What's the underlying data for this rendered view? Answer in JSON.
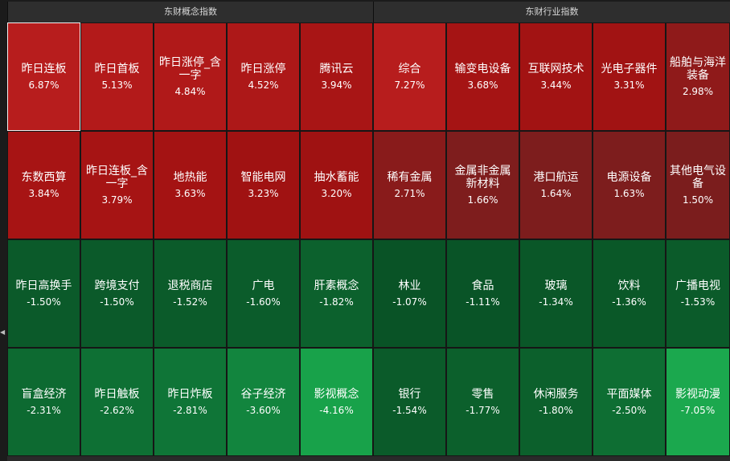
{
  "concept_panel": {
    "title": "东财概念指数",
    "tiles": [
      {
        "name": "昨日连板",
        "pct": "6.87%",
        "color": "#b71d1d",
        "selected": true
      },
      {
        "name": "昨日首板",
        "pct": "5.13%",
        "color": "#b31a1a"
      },
      {
        "name": "昨日涨停_含\n一字",
        "pct": "4.84%",
        "color": "#b01919"
      },
      {
        "name": "昨日涨停",
        "pct": "4.52%",
        "color": "#ad1818"
      },
      {
        "name": "腾讯云",
        "pct": "3.94%",
        "color": "#a81515"
      },
      {
        "name": "东数西算",
        "pct": "3.84%",
        "color": "#a71414"
      },
      {
        "name": "昨日连板_含\n一字",
        "pct": "3.79%",
        "color": "#a61414"
      },
      {
        "name": "地热能",
        "pct": "3.63%",
        "color": "#a41313"
      },
      {
        "name": "智能电网",
        "pct": "3.23%",
        "color": "#a01212"
      },
      {
        "name": "抽水蓄能",
        "pct": "3.20%",
        "color": "#9f1212"
      },
      {
        "name": "昨日高换手",
        "pct": "-1.50%",
        "color": "#0b5a2a"
      },
      {
        "name": "跨境支付",
        "pct": "-1.50%",
        "color": "#0b5a2a"
      },
      {
        "name": "退税商店",
        "pct": "-1.52%",
        "color": "#0b5b2a"
      },
      {
        "name": "广电",
        "pct": "-1.60%",
        "color": "#0b5c2b"
      },
      {
        "name": "肝素概念",
        "pct": "-1.82%",
        "color": "#0c612d"
      },
      {
        "name": "盲盒经济",
        "pct": "-2.31%",
        "color": "#0d6a31"
      },
      {
        "name": "昨日触板",
        "pct": "-2.62%",
        "color": "#0e7034"
      },
      {
        "name": "昨日炸板",
        "pct": "-2.81%",
        "color": "#0f7537"
      },
      {
        "name": "谷子经济",
        "pct": "-3.60%",
        "color": "#12853e"
      },
      {
        "name": "影视概念",
        "pct": "-4.16%",
        "color": "#18a24a"
      }
    ]
  },
  "industry_panel": {
    "title": "东财行业指数",
    "tiles": [
      {
        "name": "综合",
        "pct": "7.27%",
        "color": "#b71d1d"
      },
      {
        "name": "输变电设备",
        "pct": "3.68%",
        "color": "#a51414"
      },
      {
        "name": "互联网技术",
        "pct": "3.44%",
        "color": "#a21313"
      },
      {
        "name": "光电子器件",
        "pct": "3.31%",
        "color": "#a11313"
      },
      {
        "name": "船舶与海洋\n装备",
        "pct": "2.98%",
        "color": "#8f1a1a"
      },
      {
        "name": "稀有金属",
        "pct": "2.71%",
        "color": "#891b1b"
      },
      {
        "name": "金属非金属\n新材料",
        "pct": "1.66%",
        "color": "#7e1d1d"
      },
      {
        "name": "港口航运",
        "pct": "1.64%",
        "color": "#7d1d1d"
      },
      {
        "name": "电源设备",
        "pct": "1.63%",
        "color": "#7d1d1d"
      },
      {
        "name": "其他电气设\n备",
        "pct": "1.50%",
        "color": "#7b1d1d"
      },
      {
        "name": "林业",
        "pct": "-1.07%",
        "color": "#095326"
      },
      {
        "name": "食品",
        "pct": "-1.11%",
        "color": "#095427"
      },
      {
        "name": "玻璃",
        "pct": "-1.34%",
        "color": "#0a5728"
      },
      {
        "name": "饮料",
        "pct": "-1.36%",
        "color": "#0a5828"
      },
      {
        "name": "广播电视",
        "pct": "-1.53%",
        "color": "#0b5b2a"
      },
      {
        "name": "银行",
        "pct": "-1.54%",
        "color": "#0b5b2a"
      },
      {
        "name": "零售",
        "pct": "-1.77%",
        "color": "#0c602c"
      },
      {
        "name": "休闲服务",
        "pct": "-1.80%",
        "color": "#0c602c"
      },
      {
        "name": "平面媒体",
        "pct": "-2.50%",
        "color": "#0e6e33"
      },
      {
        "name": "影视动漫",
        "pct": "-7.05%",
        "color": "#1ba84e"
      }
    ]
  }
}
